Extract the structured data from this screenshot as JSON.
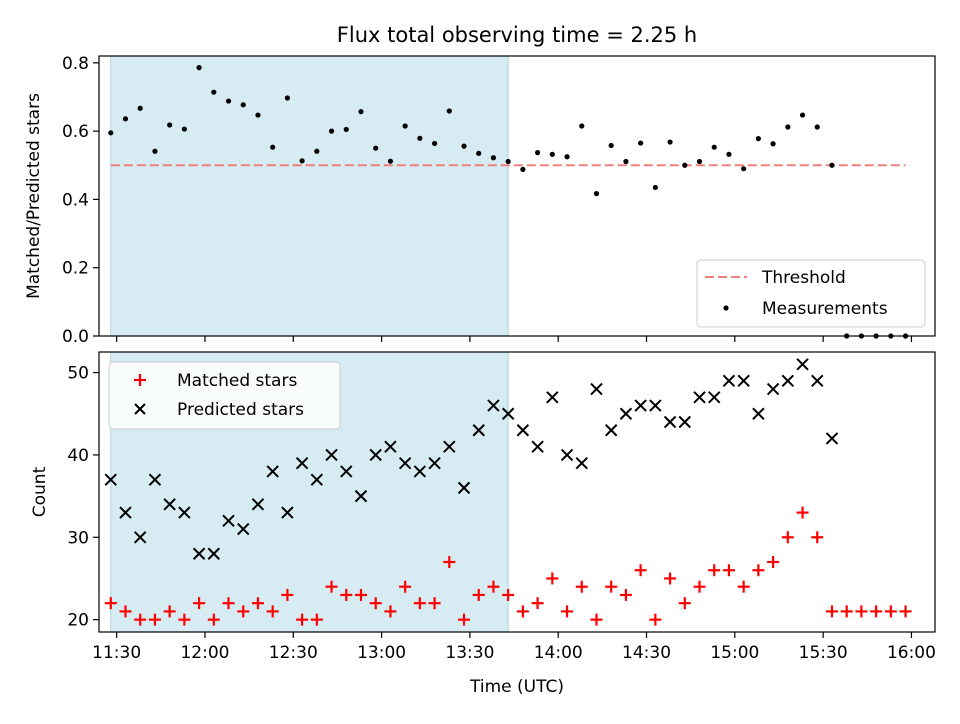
{
  "chart_data": [
    {
      "type": "scatter",
      "title": "Flux total observing time = 2.25 h",
      "xlabel": "Time (UTC)",
      "ylabel": "Matched/Predicted stars",
      "ylim": [
        0,
        0.82
      ],
      "yticks": [
        "0.0",
        "0.2",
        "0.4",
        "0.6",
        "0.8"
      ],
      "ytick_values": [
        0,
        0.2,
        0.4,
        0.6,
        0.8
      ],
      "xlim": [
        "11:24",
        "16:08"
      ],
      "shaded_region": {
        "start": "11:28",
        "end": "13:43",
        "color": "#add8e6"
      },
      "threshold": {
        "name": "Threshold",
        "value": 0.5,
        "x_start": "11:28",
        "x_end": "15:58",
        "color": "#f08080"
      },
      "legend": {
        "position": "lower-right",
        "entries": [
          "Threshold",
          "Measurements"
        ]
      },
      "series": [
        {
          "name": "Measurements",
          "color": "#000000",
          "x": [
            "11:28",
            "11:33",
            "11:38",
            "11:43",
            "11:48",
            "11:53",
            "11:58",
            "12:03",
            "12:08",
            "12:13",
            "12:18",
            "12:23",
            "12:28",
            "12:33",
            "12:38",
            "12:43",
            "12:48",
            "12:53",
            "12:58",
            "13:03",
            "13:08",
            "13:13",
            "13:18",
            "13:23",
            "13:28",
            "13:33",
            "13:38",
            "13:43",
            "13:48",
            "13:53",
            "13:58",
            "14:03",
            "14:08",
            "14:13",
            "14:18",
            "14:23",
            "14:28",
            "14:33",
            "14:38",
            "14:43",
            "14:48",
            "14:53",
            "14:58",
            "15:03",
            "15:08",
            "15:13",
            "15:18",
            "15:23",
            "15:28",
            "15:33",
            "15:38",
            "15:43",
            "15:48",
            "15:53",
            "15:58"
          ],
          "y": [
            0.595,
            0.636,
            0.667,
            0.541,
            0.618,
            0.606,
            0.786,
            0.714,
            0.688,
            0.677,
            0.647,
            0.553,
            0.697,
            0.513,
            0.541,
            0.6,
            0.605,
            0.657,
            0.55,
            0.512,
            0.615,
            0.579,
            0.564,
            0.659,
            0.556,
            0.535,
            0.522,
            0.511,
            0.488,
            0.537,
            0.532,
            0.525,
            0.615,
            0.417,
            0.558,
            0.511,
            0.565,
            0.435,
            0.568,
            0.5,
            0.511,
            0.553,
            0.532,
            0.49,
            0.578,
            0.563,
            0.612,
            0.647,
            0.612,
            0.5,
            0.0,
            0.0,
            0.0,
            0.0,
            0.0
          ]
        }
      ]
    },
    {
      "type": "scatter",
      "xlabel": "Time (UTC)",
      "ylabel": "Count",
      "ylim": [
        18.5,
        52.5
      ],
      "yticks": [
        "20",
        "30",
        "40",
        "50"
      ],
      "ytick_values": [
        20,
        30,
        40,
        50
      ],
      "xticks": [
        "11:30",
        "12:00",
        "12:30",
        "13:00",
        "13:30",
        "14:00",
        "14:30",
        "15:00",
        "15:30",
        "16:00"
      ],
      "xlim": [
        "11:24",
        "16:08"
      ],
      "shaded_region": {
        "start": "11:28",
        "end": "13:43",
        "color": "#add8e6"
      },
      "legend": {
        "position": "top-left",
        "entries": [
          "Matched stars",
          "Predicted stars"
        ]
      },
      "series": [
        {
          "name": "Matched stars",
          "marker": "+",
          "color": "#ff0000",
          "x": [
            "11:28",
            "11:33",
            "11:38",
            "11:43",
            "11:48",
            "11:53",
            "11:58",
            "12:03",
            "12:08",
            "12:13",
            "12:18",
            "12:23",
            "12:28",
            "12:33",
            "12:38",
            "12:43",
            "12:48",
            "12:53",
            "12:58",
            "13:03",
            "13:08",
            "13:13",
            "13:18",
            "13:23",
            "13:28",
            "13:33",
            "13:38",
            "13:43",
            "13:48",
            "13:53",
            "13:58",
            "14:03",
            "14:08",
            "14:13",
            "14:18",
            "14:23",
            "14:28",
            "14:33",
            "14:38",
            "14:43",
            "14:48",
            "14:53",
            "14:58",
            "15:03",
            "15:08",
            "15:13",
            "15:18",
            "15:23",
            "15:28",
            "15:33",
            "15:38",
            "15:43",
            "15:48",
            "15:53",
            "15:58"
          ],
          "y": [
            22,
            21,
            20,
            20,
            21,
            20,
            22,
            20,
            22,
            21,
            22,
            21,
            23,
            20,
            20,
            24,
            23,
            23,
            22,
            21,
            24,
            22,
            22,
            27,
            20,
            23,
            24,
            23,
            21,
            22,
            25,
            21,
            24,
            20,
            24,
            23,
            26,
            20,
            25,
            22,
            24,
            26,
            26,
            24,
            26,
            27,
            30,
            33,
            30,
            21,
            21,
            21,
            21,
            21,
            21
          ]
        },
        {
          "name": "Predicted stars",
          "marker": "x",
          "color": "#000000",
          "x": [
            "11:28",
            "11:33",
            "11:38",
            "11:43",
            "11:48",
            "11:53",
            "11:58",
            "12:03",
            "12:08",
            "12:13",
            "12:18",
            "12:23",
            "12:28",
            "12:33",
            "12:38",
            "12:43",
            "12:48",
            "12:53",
            "12:58",
            "13:03",
            "13:08",
            "13:13",
            "13:18",
            "13:23",
            "13:28",
            "13:33",
            "13:38",
            "13:43",
            "13:48",
            "13:53",
            "13:58",
            "14:03",
            "14:08",
            "14:13",
            "14:18",
            "14:23",
            "14:28",
            "14:33",
            "14:38",
            "14:43",
            "14:48",
            "14:53",
            "14:58",
            "15:03",
            "15:08",
            "15:13",
            "15:18",
            "15:23",
            "15:28",
            "15:33"
          ],
          "y": [
            37,
            33,
            30,
            37,
            34,
            33,
            28,
            28,
            32,
            31,
            34,
            38,
            33,
            39,
            37,
            40,
            38,
            35,
            40,
            41,
            39,
            38,
            39,
            41,
            36,
            43,
            46,
            45,
            43,
            41,
            47,
            40,
            39,
            48,
            43,
            45,
            46,
            46,
            44,
            44,
            47,
            47,
            49,
            49,
            45,
            48,
            49,
            51,
            49,
            42
          ]
        }
      ]
    }
  ]
}
